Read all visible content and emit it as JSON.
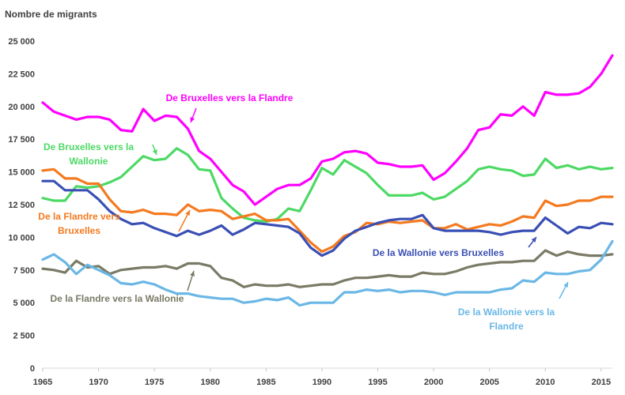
{
  "chart_data": {
    "type": "line",
    "ylabel": "Nombre de migrants",
    "ylim": [
      0,
      25000
    ],
    "xlim": [
      1965,
      2016
    ],
    "y_ticks": [
      {
        "value": 0,
        "label": "0"
      },
      {
        "value": 2500,
        "label": "2 500"
      },
      {
        "value": 5000,
        "label": "5 000"
      },
      {
        "value": 7500,
        "label": "7 500"
      },
      {
        "value": 10000,
        "label": "10 000"
      },
      {
        "value": 12500,
        "label": "12 500"
      },
      {
        "value": 15000,
        "label": "15 000"
      },
      {
        "value": 17500,
        "label": "17 500"
      },
      {
        "value": 20000,
        "label": "20 000"
      },
      {
        "value": 22500,
        "label": "22 500"
      },
      {
        "value": 25000,
        "label": "25 000"
      }
    ],
    "x_ticks": [
      {
        "value": 1965,
        "label": "1965"
      },
      {
        "value": 1970,
        "label": "1970"
      },
      {
        "value": 1975,
        "label": "1975"
      },
      {
        "value": 1980,
        "label": "1980"
      },
      {
        "value": 1985,
        "label": "1985"
      },
      {
        "value": 1990,
        "label": "1990"
      },
      {
        "value": 1995,
        "label": "1995"
      },
      {
        "value": 2000,
        "label": "2000"
      },
      {
        "value": 2005,
        "label": "2005"
      },
      {
        "value": 2010,
        "label": "2010"
      },
      {
        "value": 2015,
        "label": "2015"
      }
    ],
    "grid": false,
    "legend": "none",
    "x": [
      1965,
      1966,
      1967,
      1968,
      1969,
      1970,
      1971,
      1972,
      1973,
      1974,
      1975,
      1976,
      1977,
      1978,
      1979,
      1980,
      1981,
      1982,
      1983,
      1984,
      1985,
      1986,
      1987,
      1988,
      1989,
      1990,
      1991,
      1992,
      1993,
      1994,
      1995,
      1996,
      1997,
      1998,
      1999,
      2000,
      2001,
      2002,
      2003,
      2004,
      2005,
      2006,
      2007,
      2008,
      2009,
      2010,
      2011,
      2012,
      2013,
      2014,
      2015,
      2016
    ],
    "series": [
      {
        "name": "De Bruxelles vers la Flandre",
        "color": "#ff00ff",
        "values": [
          20300,
          19600,
          19300,
          19000,
          19200,
          19200,
          19000,
          18200,
          18100,
          19800,
          18900,
          19300,
          19200,
          18300,
          16600,
          16000,
          15000,
          14000,
          13500,
          12500,
          13100,
          13700,
          14000,
          14000,
          14500,
          15800,
          16000,
          16500,
          16600,
          16400,
          15700,
          15600,
          15400,
          15400,
          15500,
          14400,
          14900,
          15800,
          16800,
          18200,
          18400,
          19400,
          19300,
          20000,
          19300,
          21100,
          20900,
          20900,
          21000,
          21500,
          22500,
          23900
        ]
      },
      {
        "name": "De Bruxelles vers la Wallonie",
        "color": "#4cd964",
        "values": [
          13000,
          12800,
          12800,
          13900,
          13800,
          13900,
          14200,
          14600,
          15400,
          16200,
          15900,
          16000,
          16800,
          16300,
          15200,
          15100,
          13000,
          12200,
          11500,
          11300,
          11200,
          11400,
          12200,
          12000,
          13600,
          15300,
          14800,
          15900,
          15400,
          14900,
          14000,
          13200,
          13200,
          13200,
          13400,
          12900,
          13100,
          13700,
          14300,
          15200,
          15400,
          15200,
          15100,
          14700,
          14800,
          16000,
          15300,
          15500,
          15200,
          15400,
          15200,
          15300
        ]
      },
      {
        "name": "De la Flandre vers Bruxelles",
        "color": "#f47a1f",
        "values": [
          15100,
          15200,
          14500,
          14500,
          14100,
          14100,
          12900,
          12000,
          11900,
          12100,
          11800,
          11800,
          11700,
          12500,
          12000,
          12100,
          12000,
          11400,
          11600,
          11800,
          11300,
          11300,
          11400,
          10500,
          9600,
          8900,
          9300,
          10100,
          10400,
          11100,
          11000,
          11200,
          11100,
          11200,
          11300,
          10700,
          10700,
          11000,
          10600,
          10800,
          11000,
          10900,
          11200,
          11600,
          11500,
          12800,
          12400,
          12500,
          12800,
          12800,
          13100,
          13100
        ]
      },
      {
        "name": "De la Wallonie vers Bruxelles",
        "color": "#3a4fb4",
        "values": [
          14300,
          14300,
          13600,
          13600,
          13600,
          12900,
          12000,
          11400,
          11000,
          11100,
          10700,
          10400,
          10100,
          10500,
          10200,
          10500,
          10900,
          10200,
          10600,
          11100,
          11000,
          10900,
          10800,
          10300,
          9200,
          8600,
          9000,
          9900,
          10500,
          10800,
          11100,
          11300,
          11400,
          11400,
          11700,
          10700,
          10500,
          10500,
          10500,
          10500,
          10400,
          10200,
          10400,
          10500,
          10500,
          11500,
          10900,
          10300,
          10800,
          10700,
          11100,
          11000
        ]
      },
      {
        "name": "De la Flandre vers la Wallonie",
        "color": "#7a7a66",
        "values": [
          7600,
          7500,
          7300,
          8200,
          7700,
          7800,
          7200,
          7500,
          7600,
          7700,
          7700,
          7800,
          7600,
          8000,
          8000,
          7800,
          6900,
          6700,
          6200,
          6400,
          6300,
          6300,
          6400,
          6200,
          6300,
          6400,
          6400,
          6700,
          6900,
          6900,
          7000,
          7100,
          7000,
          7000,
          7300,
          7200,
          7200,
          7400,
          7700,
          7900,
          8000,
          8100,
          8100,
          8200,
          8200,
          9000,
          8600,
          8900,
          8700,
          8600,
          8600,
          8700
        ]
      },
      {
        "name": "De la Wallonie vers la Flandre",
        "color": "#6ab7e6",
        "values": [
          8300,
          8700,
          8100,
          7200,
          7900,
          7500,
          7100,
          6500,
          6400,
          6600,
          6400,
          6000,
          5700,
          5700,
          5500,
          5400,
          5300,
          5300,
          5000,
          5100,
          5300,
          5200,
          5400,
          4800,
          5000,
          5000,
          5000,
          5800,
          5800,
          6000,
          5900,
          6000,
          5800,
          5900,
          5900,
          5800,
          5600,
          5800,
          5800,
          5800,
          5800,
          6000,
          6100,
          6700,
          6600,
          7300,
          7200,
          7200,
          7400,
          7500,
          8300,
          9700
        ]
      }
    ],
    "annotations": [
      {
        "text": "De Bruxelles vers la Flandre",
        "color": "#ff00ff",
        "series": 0,
        "lines": [
          "De Bruxelles vers la Flandre"
        ]
      },
      {
        "text": "De Bruxelles vers la Wallonie",
        "color": "#4cd964",
        "series": 1,
        "lines": [
          "De Bruxelles vers la",
          "Wallonie"
        ]
      },
      {
        "text": "De la Flandre vers Bruxelles",
        "color": "#f47a1f",
        "series": 2,
        "lines": [
          "De la Flandre vers",
          "Bruxelles"
        ]
      },
      {
        "text": "De la Wallonie vers Bruxelles",
        "color": "#3a4fb4",
        "series": 3,
        "lines": [
          "De la Wallonie vers Bruxelles"
        ]
      },
      {
        "text": "De la Flandre vers la Wallonie",
        "color": "#7a7a66",
        "series": 4,
        "lines": [
          "De la Flandre vers la Wallonie"
        ]
      },
      {
        "text": "De la Wallonie vers la Flandre",
        "color": "#6ab7e6",
        "series": 5,
        "lines": [
          "De la Wallonie vers la",
          "Flandre"
        ]
      }
    ]
  }
}
